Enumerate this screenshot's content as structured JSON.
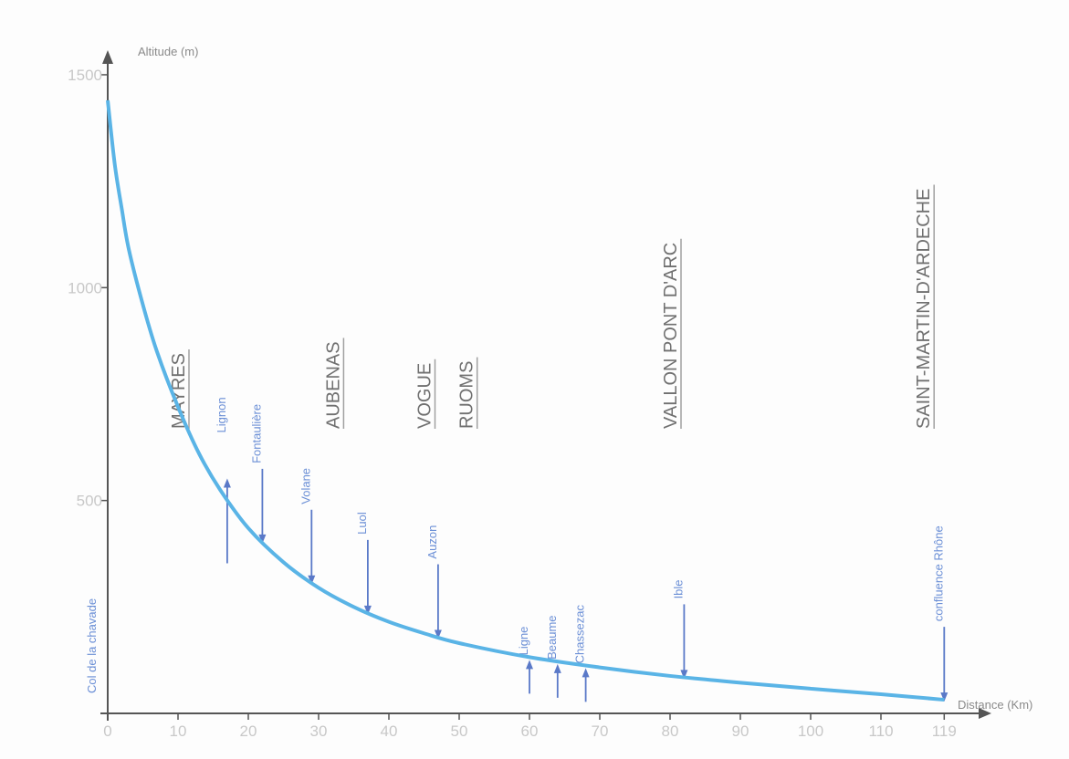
{
  "chart_data": {
    "type": "line",
    "title": "",
    "xlabel": "Distance (Km)",
    "ylabel": "Altitude (m)",
    "xlim": [
      0,
      125
    ],
    "ylim": [
      0,
      1500
    ],
    "x_ticks": [
      0,
      10,
      20,
      30,
      40,
      50,
      60,
      70,
      80,
      90,
      100,
      110,
      119
    ],
    "x_tick_labels": [
      "0",
      "10",
      "20",
      "30",
      "40",
      "50",
      "60",
      "70",
      "80",
      "90",
      "100",
      "110",
      "119"
    ],
    "y_ticks": [
      500,
      1000,
      1500
    ],
    "y_tick_labels": [
      "500",
      "1000",
      "1500"
    ],
    "grid": false,
    "series": [
      {
        "color": "#5ab4e6",
        "x": [
          0,
          1,
          2,
          3,
          5,
          7,
          10,
          13,
          16,
          20,
          25,
          30,
          35,
          40,
          45,
          50,
          60,
          70,
          80,
          90,
          100,
          110,
          119
        ],
        "y": [
          1440,
          1290,
          1185,
          1090,
          960,
          850,
          720,
          610,
          525,
          435,
          355,
          295,
          250,
          215,
          188,
          165,
          132,
          108,
          88,
          72,
          58,
          45,
          32
        ]
      }
    ],
    "towns": [
      {
        "label": "MAYRES",
        "x": 10
      },
      {
        "label": "AUBENAS",
        "x": 32
      },
      {
        "label": "VOGUE",
        "x": 45
      },
      {
        "label": "RUOMS",
        "x": 51
      },
      {
        "label": "VALLON PONT D'ARC",
        "x": 80
      },
      {
        "label": "SAINT-MARTIN-D'ARDECHE",
        "x": 116
      }
    ],
    "source_label": {
      "label": "Col de la chavade",
      "x": -2
    },
    "tributaries": [
      {
        "label": "Lignon",
        "x": 17,
        "direction": "up"
      },
      {
        "label": "Fontaulière",
        "x": 22,
        "direction": "down"
      },
      {
        "label": "Volane",
        "x": 29,
        "direction": "down"
      },
      {
        "label": "Luol",
        "x": 37,
        "direction": "down"
      },
      {
        "label": "Auzon",
        "x": 47,
        "direction": "down"
      },
      {
        "label": "Ligne",
        "x": 60,
        "direction": "up"
      },
      {
        "label": "Beaume",
        "x": 64,
        "direction": "up"
      },
      {
        "label": "Chassezac",
        "x": 68,
        "direction": "up"
      },
      {
        "label": "Ible",
        "x": 82,
        "direction": "down"
      },
      {
        "label": "confluence Rhône",
        "x": 119,
        "direction": "down"
      }
    ],
    "colors": {
      "profile": "#5ab4e6",
      "tributary": "#5a79c8",
      "axis": "#555555"
    }
  }
}
